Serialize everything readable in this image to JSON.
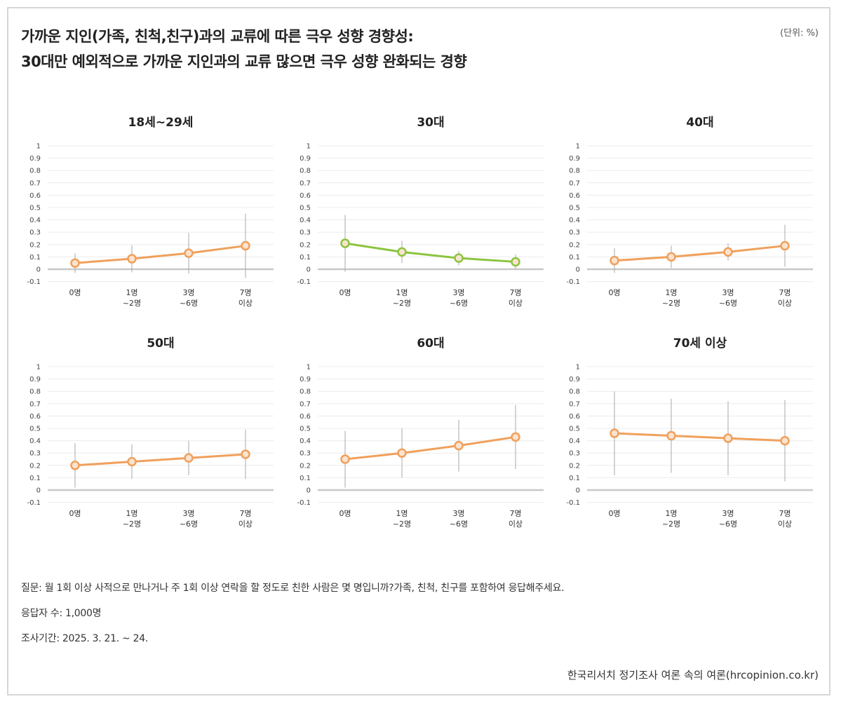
{
  "title": "가까운 지인(가족, 친척,친구)과의 교류에 따른 극우 성향 경향성:",
  "subtitle": "30대만 예외적으로 가까운 지인과의 교류 많으면 극우 성향 완화되는 경향",
  "unit": "(단위: %)",
  "notes": [
    "질문: 월 1회 이상 사적으로 만나거나 주 1회 이상 연락을 할 정도로 친한 사람은 몇 명입니까?가족, 친척, 친구를 포함하여 응답해주세요.",
    "응답자 수: 1,000명",
    "조사기간: 2025. 3. 21. ~ 24."
  ],
  "source": "한국리서치 정기조사 여론 속의 여론(hrcopinion.co.kr)",
  "chart_data": [
    {
      "type": "line",
      "title": "18세~29세",
      "categories": [
        "0명",
        "1명\n~2명",
        "3명\n~6명",
        "7명\n이상"
      ],
      "values": [
        0.05,
        0.085,
        0.13,
        0.19
      ],
      "errors": [
        0.08,
        0.11,
        0.165,
        0.26
      ],
      "color": "#f0a05c",
      "ylim": [
        -0.1,
        1
      ],
      "yticks": [
        1,
        0.9,
        0.8,
        0.7,
        0.6,
        0.5,
        0.4,
        0.3,
        0.2,
        0.1,
        0,
        -0.1
      ],
      "grid": true
    },
    {
      "type": "line",
      "title": "30대",
      "categories": [
        "0명",
        "1명\n~2명",
        "3명\n~6명",
        "7명\n이상"
      ],
      "values": [
        0.21,
        0.14,
        0.09,
        0.06
      ],
      "errors": [
        0.23,
        0.09,
        0.06,
        0.06
      ],
      "color": "#8cc43f",
      "ylim": [
        -0.1,
        1
      ],
      "yticks": [
        1,
        0.9,
        0.8,
        0.7,
        0.6,
        0.5,
        0.4,
        0.3,
        0.2,
        0.1,
        0,
        -0.1
      ],
      "grid": true
    },
    {
      "type": "line",
      "title": "40대",
      "categories": [
        "0명",
        "1명\n~2명",
        "3명\n~6명",
        "7명\n이상"
      ],
      "values": [
        0.07,
        0.1,
        0.14,
        0.19
      ],
      "errors": [
        0.1,
        0.09,
        0.07,
        0.17
      ],
      "color": "#f0a05c",
      "ylim": [
        -0.1,
        1
      ],
      "yticks": [
        1,
        0.9,
        0.8,
        0.7,
        0.6,
        0.5,
        0.4,
        0.3,
        0.2,
        0.1,
        0,
        -0.1
      ],
      "grid": true
    },
    {
      "type": "line",
      "title": "50대",
      "categories": [
        "0명",
        "1명\n~2명",
        "3명\n~6명",
        "7명\n이상"
      ],
      "values": [
        0.2,
        0.23,
        0.26,
        0.29
      ],
      "errors": [
        0.18,
        0.14,
        0.14,
        0.2
      ],
      "color": "#f0a05c",
      "ylim": [
        -0.1,
        1
      ],
      "yticks": [
        1,
        0.9,
        0.8,
        0.7,
        0.6,
        0.5,
        0.4,
        0.3,
        0.2,
        0.1,
        0,
        -0.1
      ],
      "grid": true
    },
    {
      "type": "line",
      "title": "60대",
      "categories": [
        "0명",
        "1명\n~2명",
        "3명\n~6명",
        "7명\n이상"
      ],
      "values": [
        0.25,
        0.3,
        0.36,
        0.43
      ],
      "errors": [
        0.23,
        0.2,
        0.21,
        0.26
      ],
      "color": "#f0a05c",
      "ylim": [
        -0.1,
        1
      ],
      "yticks": [
        1,
        0.9,
        0.8,
        0.7,
        0.6,
        0.5,
        0.4,
        0.3,
        0.2,
        0.1,
        0,
        -0.1
      ],
      "grid": true
    },
    {
      "type": "line",
      "title": "70세 이상",
      "categories": [
        "0명",
        "1명\n~2명",
        "3명\n~6명",
        "7명\n이상"
      ],
      "values": [
        0.46,
        0.44,
        0.42,
        0.4
      ],
      "errors": [
        0.34,
        0.3,
        0.3,
        0.33
      ],
      "color": "#f0a05c",
      "ylim": [
        -0.1,
        1
      ],
      "yticks": [
        1,
        0.9,
        0.8,
        0.7,
        0.6,
        0.5,
        0.4,
        0.3,
        0.2,
        0.1,
        0,
        -0.1
      ],
      "grid": true
    }
  ]
}
